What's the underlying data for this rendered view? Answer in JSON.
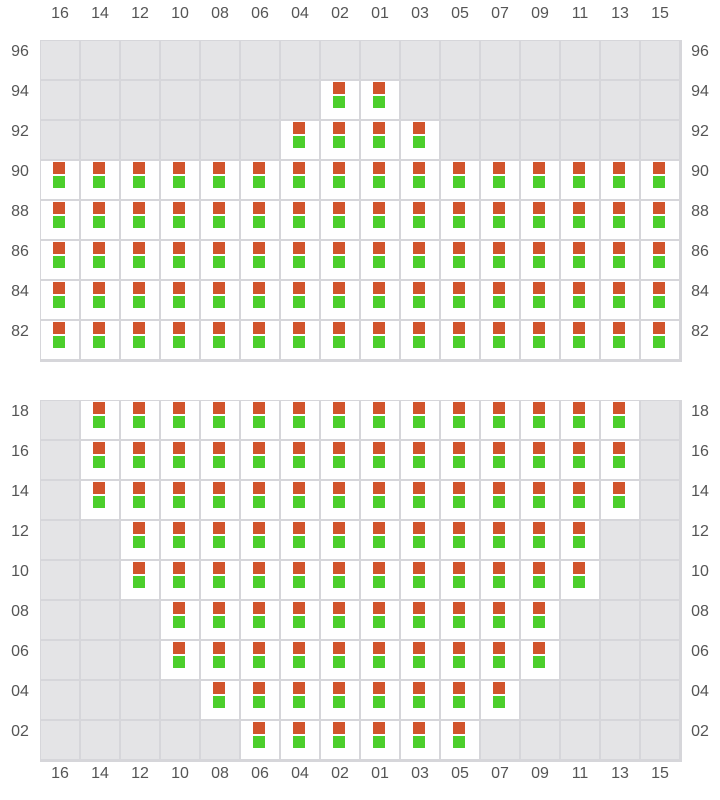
{
  "columns": [
    "16",
    "14",
    "12",
    "10",
    "08",
    "06",
    "04",
    "02",
    "01",
    "03",
    "05",
    "07",
    "09",
    "11",
    "13",
    "15"
  ],
  "colors": {
    "indicator_top": "#d1542c",
    "indicator_bottom": "#4ccf2c",
    "inactive_cell": "#e4e4e6",
    "active_cell": "#ffffff",
    "grid_line": "#d6d6da"
  },
  "sections": [
    {
      "name": "upper",
      "rows": [
        {
          "label": "96",
          "active": []
        },
        {
          "label": "94",
          "active": [
            "02",
            "01"
          ]
        },
        {
          "label": "92",
          "active": [
            "04",
            "02",
            "01",
            "03"
          ]
        },
        {
          "label": "90",
          "active": [
            "16",
            "14",
            "12",
            "10",
            "08",
            "06",
            "04",
            "02",
            "01",
            "03",
            "05",
            "07",
            "09",
            "11",
            "13",
            "15"
          ]
        },
        {
          "label": "88",
          "active": [
            "16",
            "14",
            "12",
            "10",
            "08",
            "06",
            "04",
            "02",
            "01",
            "03",
            "05",
            "07",
            "09",
            "11",
            "13",
            "15"
          ]
        },
        {
          "label": "86",
          "active": [
            "16",
            "14",
            "12",
            "10",
            "08",
            "06",
            "04",
            "02",
            "01",
            "03",
            "05",
            "07",
            "09",
            "11",
            "13",
            "15"
          ]
        },
        {
          "label": "84",
          "active": [
            "16",
            "14",
            "12",
            "10",
            "08",
            "06",
            "04",
            "02",
            "01",
            "03",
            "05",
            "07",
            "09",
            "11",
            "13",
            "15"
          ]
        },
        {
          "label": "82",
          "active": [
            "16",
            "14",
            "12",
            "10",
            "08",
            "06",
            "04",
            "02",
            "01",
            "03",
            "05",
            "07",
            "09",
            "11",
            "13",
            "15"
          ]
        }
      ]
    },
    {
      "name": "lower",
      "rows": [
        {
          "label": "18",
          "active": [
            "14",
            "12",
            "10",
            "08",
            "06",
            "04",
            "02",
            "01",
            "03",
            "05",
            "07",
            "09",
            "11",
            "13"
          ]
        },
        {
          "label": "16",
          "active": [
            "14",
            "12",
            "10",
            "08",
            "06",
            "04",
            "02",
            "01",
            "03",
            "05",
            "07",
            "09",
            "11",
            "13"
          ]
        },
        {
          "label": "14",
          "active": [
            "14",
            "12",
            "10",
            "08",
            "06",
            "04",
            "02",
            "01",
            "03",
            "05",
            "07",
            "09",
            "11",
            "13"
          ]
        },
        {
          "label": "12",
          "active": [
            "12",
            "10",
            "08",
            "06",
            "04",
            "02",
            "01",
            "03",
            "05",
            "07",
            "09",
            "11"
          ]
        },
        {
          "label": "10",
          "active": [
            "12",
            "10",
            "08",
            "06",
            "04",
            "02",
            "01",
            "03",
            "05",
            "07",
            "09",
            "11"
          ]
        },
        {
          "label": "08",
          "active": [
            "10",
            "08",
            "06",
            "04",
            "02",
            "01",
            "03",
            "05",
            "07",
            "09"
          ]
        },
        {
          "label": "06",
          "active": [
            "10",
            "08",
            "06",
            "04",
            "02",
            "01",
            "03",
            "05",
            "07",
            "09"
          ]
        },
        {
          "label": "04",
          "active": [
            "08",
            "06",
            "04",
            "02",
            "01",
            "03",
            "05",
            "07"
          ]
        },
        {
          "label": "02",
          "active": [
            "06",
            "04",
            "02",
            "01",
            "03",
            "05"
          ]
        }
      ]
    }
  ]
}
